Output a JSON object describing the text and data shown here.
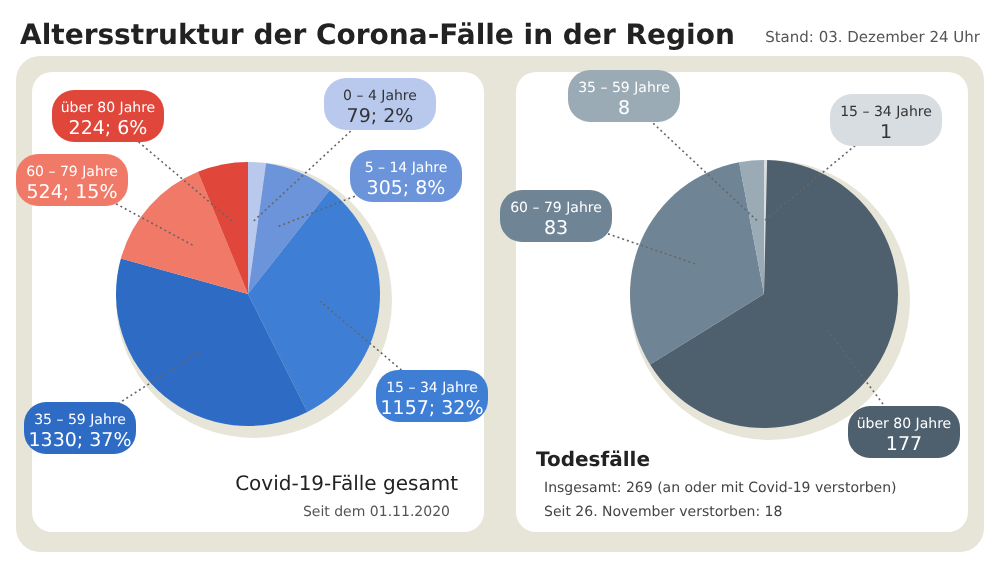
{
  "chart_data": [
    {
      "type": "pie",
      "title": "Altersstruktur der Corona-Fälle in der Region",
      "categories": [
        "0 – 4 Jahre",
        "5 – 14 Jahre",
        "15 – 34 Jahre",
        "35 – 59 Jahre",
        "60 – 79 Jahre",
        "über 80 Jahre"
      ],
      "values": [
        79,
        305,
        1157,
        1330,
        524,
        224
      ],
      "value_labels": [
        "79; 2%",
        "305; 8%",
        "1157; 32%",
        "1330; 37%",
        "524; 15%",
        "224; 6%"
      ],
      "colors": [
        "#b9c9ee",
        "#6c94da",
        "#3e7ed5",
        "#2e6bc4",
        "#f07a67",
        "#e0463a"
      ],
      "annotations": [
        "Stand: 03. Dezember 24 Uhr",
        "Covid-19-Fälle gesamt",
        "Seit dem 01.11.2020"
      ]
    },
    {
      "type": "pie",
      "title": "Todesfälle",
      "categories": [
        "15 – 34 Jahre",
        "über 80 Jahre",
        "60 – 79 Jahre",
        "35 – 59 Jahre"
      ],
      "values": [
        1,
        177,
        83,
        8
      ],
      "colors": [
        "#d8dde2",
        "#4e5f6e",
        "#6f8595",
        "#9aabb6"
      ],
      "data_labels": true,
      "annotations": [
        "Insgesamt: 269 (an oder mit Covid-19 verstorben)",
        "Seit 26. November verstorben: 18"
      ]
    }
  ]
}
